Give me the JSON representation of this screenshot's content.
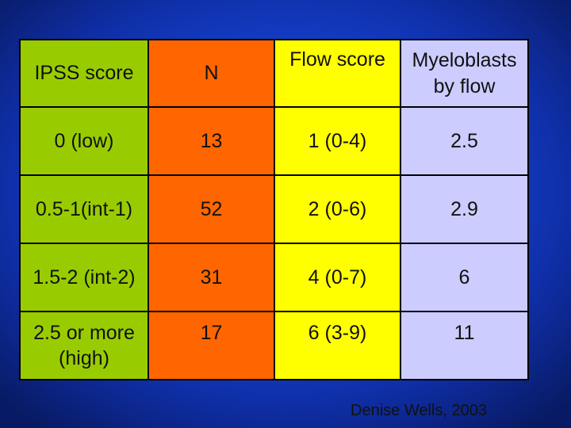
{
  "table": {
    "headers": [
      "IPSS score",
      "N",
      "Flow score",
      "Myeloblasts\nby flow"
    ],
    "rows": [
      [
        "0 (low)",
        "13",
        "1 (0-4)",
        "2.5"
      ],
      [
        "0.5-1(int-1)",
        "52",
        "2 (0-6)",
        "2.9"
      ],
      [
        "1.5-2 (int-2)",
        "31",
        "4 (0-7)",
        "6"
      ],
      [
        "2.5 or more\n(high)",
        "17",
        "6 (3-9)",
        "11"
      ]
    ],
    "column_colors": [
      "#99cc00",
      "#ff6600",
      "#ffff00",
      "#ccccff"
    ]
  },
  "credit": "Denise Wells, 2003"
}
